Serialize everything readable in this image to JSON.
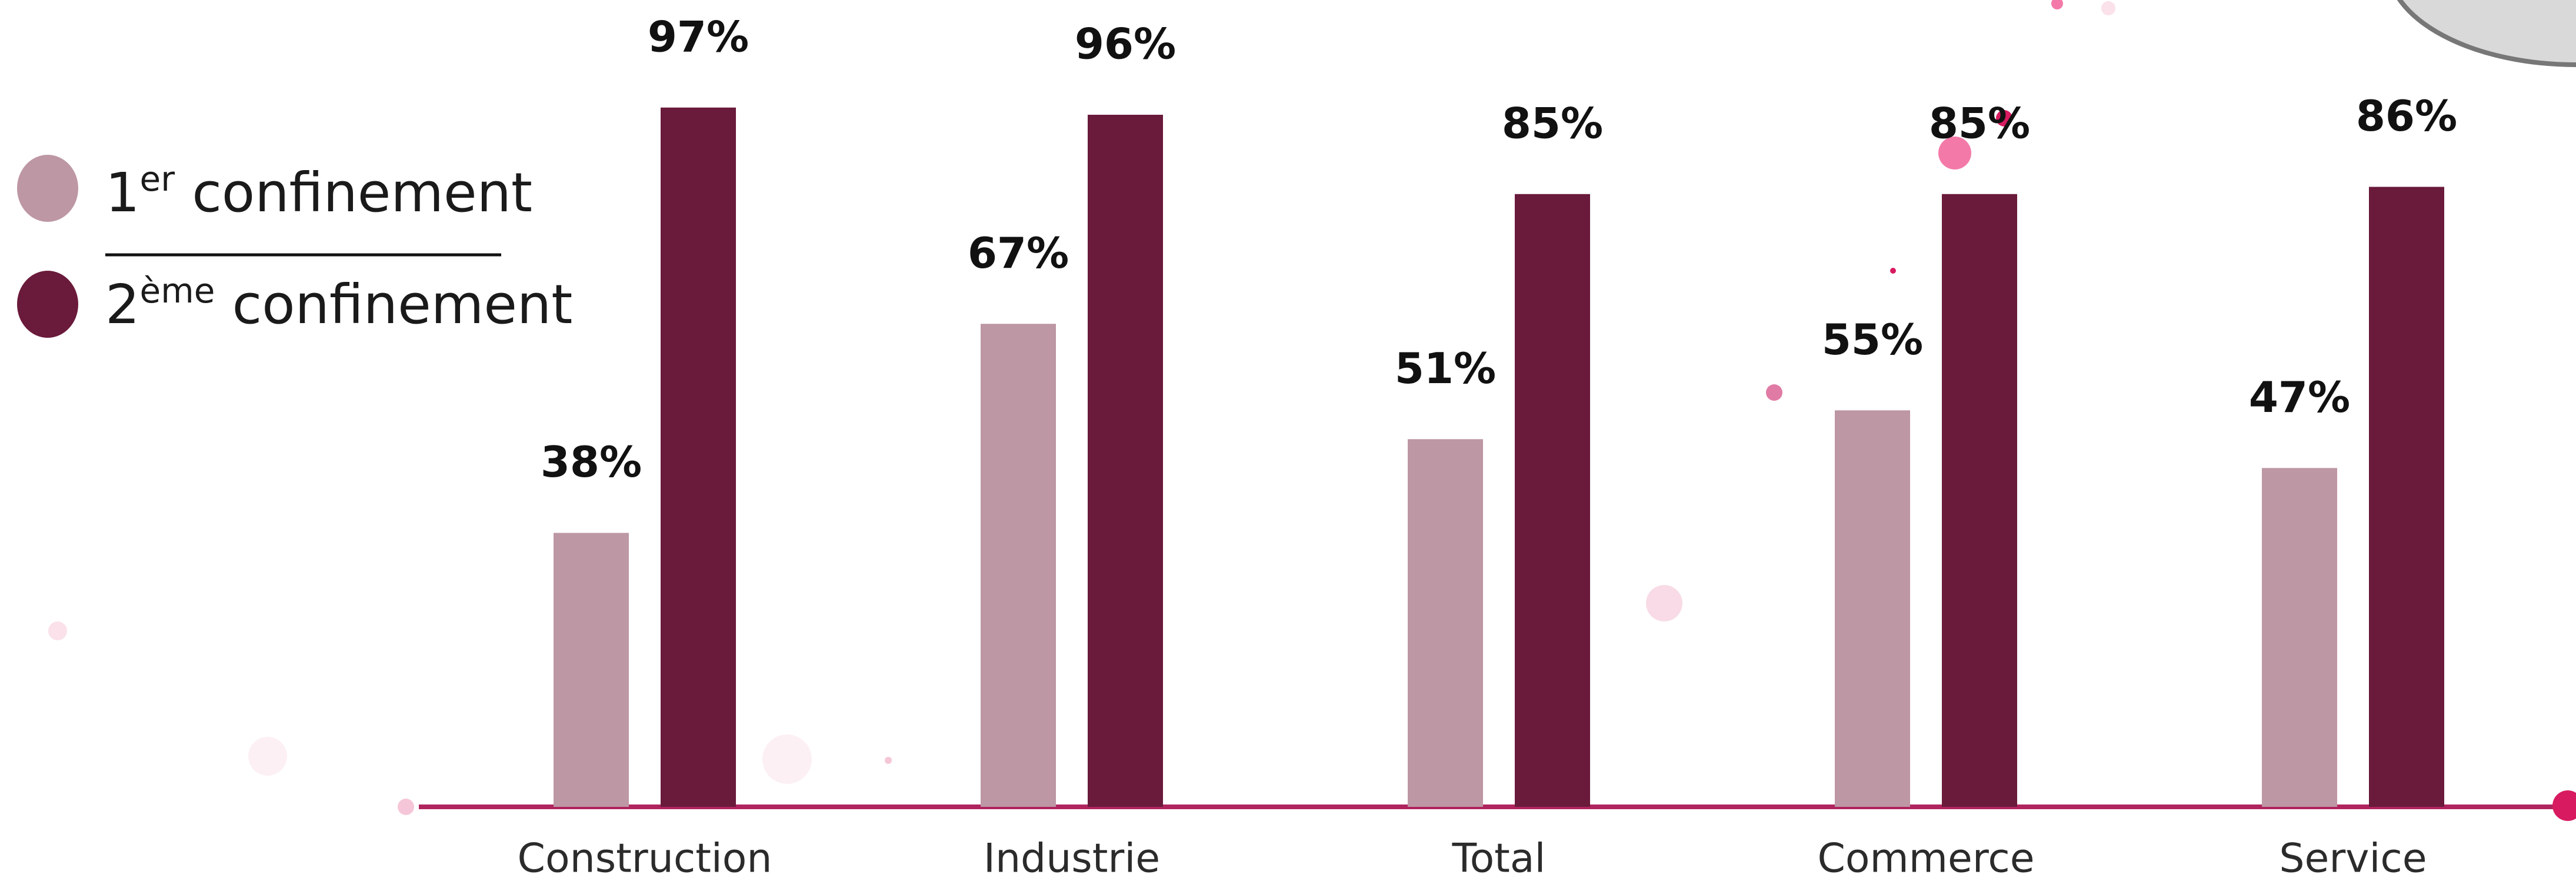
{
  "chart_data": {
    "type": "bar",
    "categories": [
      "Construction",
      "Industrie",
      "Total",
      "Commerce",
      "Service"
    ],
    "series": [
      {
        "name": "1er confinement",
        "color": "#bd97a3",
        "values": [
          38,
          67,
          51,
          55,
          47
        ],
        "value_labels": [
          "38%",
          "67%",
          "51%",
          "55%",
          "47%"
        ]
      },
      {
        "name": "2ème confinement",
        "color": "#6a1a3a",
        "values": [
          97,
          96,
          85,
          85,
          86
        ],
        "value_labels": [
          "97%",
          "96%",
          "85%",
          "85%",
          "86%"
        ]
      }
    ],
    "ylim": [
      0,
      100
    ]
  }
}
